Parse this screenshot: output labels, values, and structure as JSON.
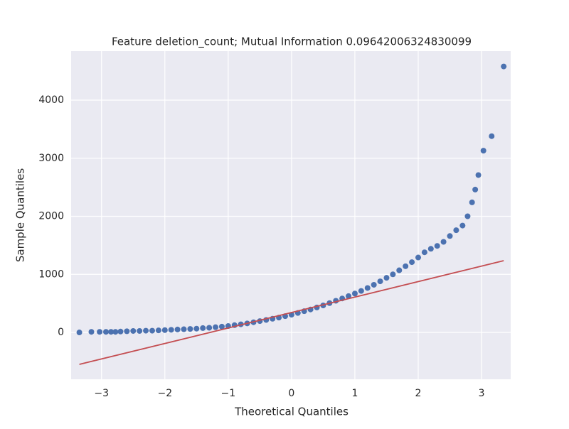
{
  "chart_data": {
    "type": "scatter",
    "title": "Feature deletion_count; Mutual Information 0.09642006324830099",
    "xlabel": "Theoretical Quantiles",
    "ylabel": "Sample Quantiles",
    "xlim": [
      -3.48,
      3.46
    ],
    "ylim": [
      -807,
      4844
    ],
    "xticks": [
      {
        "value": -3,
        "label": "−3"
      },
      {
        "value": -2,
        "label": "−2"
      },
      {
        "value": -1,
        "label": "−1"
      },
      0,
      1,
      2,
      3
    ],
    "yticks": [
      0,
      1000,
      2000,
      3000,
      4000
    ],
    "grid": true,
    "series": [
      {
        "color": "#4c72b0",
        "x": [
          -3.35,
          -3.16,
          -3.03,
          -2.93,
          -2.85,
          -2.78,
          -2.7,
          -2.6,
          -2.5,
          -2.4,
          -2.3,
          -2.2,
          -2.1,
          -2.0,
          -1.9,
          -1.8,
          -1.7,
          -1.6,
          -1.5,
          -1.4,
          -1.3,
          -1.2,
          -1.1,
          -1.0,
          -0.9,
          -0.8,
          -0.7,
          -0.6,
          -0.5,
          -0.4,
          -0.3,
          -0.2,
          -0.1,
          0,
          0.1,
          0.2,
          0.3,
          0.4,
          0.5,
          0.6,
          0.7,
          0.8,
          0.9,
          1.0,
          1.1,
          1.2,
          1.3,
          1.4,
          1.5,
          1.6,
          1.7,
          1.8,
          1.9,
          2.0,
          2.1,
          2.2,
          2.3,
          2.4,
          2.5,
          2.6,
          2.7,
          2.78,
          2.85,
          2.9,
          2.95,
          3.03,
          3.16,
          3.35
        ],
        "values": [
          0,
          10,
          10,
          10,
          10,
          10,
          15,
          20,
          25,
          25,
          30,
          30,
          35,
          40,
          45,
          50,
          55,
          60,
          65,
          75,
          80,
          90,
          100,
          110,
          125,
          140,
          155,
          175,
          195,
          215,
          235,
          255,
          280,
          305,
          335,
          365,
          395,
          430,
          465,
          505,
          545,
          585,
          625,
          670,
          715,
          765,
          820,
          880,
          940,
          1000,
          1070,
          1140,
          1210,
          1290,
          1380,
          1440,
          1490,
          1560,
          1660,
          1760,
          1840,
          2000,
          2240,
          2460,
          2710,
          3130,
          3380,
          4580
        ]
      }
    ],
    "fit_line": {
      "color": "#c44e52",
      "x": [
        -3.35,
        3.35
      ],
      "values": [
        -550,
        1235
      ]
    }
  }
}
